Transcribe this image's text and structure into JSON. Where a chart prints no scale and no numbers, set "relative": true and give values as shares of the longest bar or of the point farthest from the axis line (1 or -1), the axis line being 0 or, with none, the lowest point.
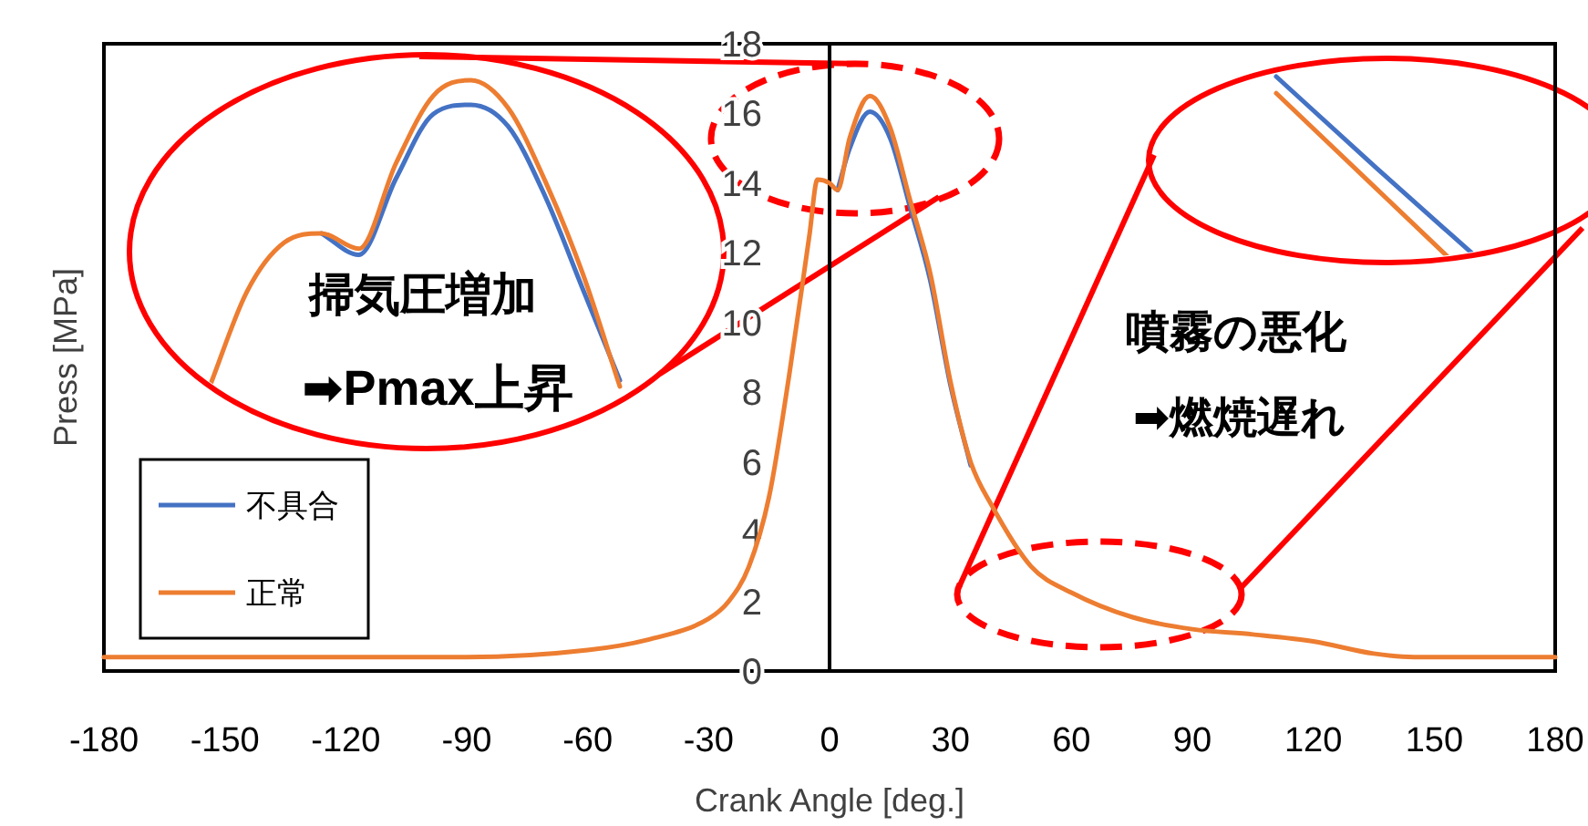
{
  "chart_data": [
    {
      "type": "line",
      "xlabel": "Crank Angle [deg.]",
      "ylabel": "Press [MPa]",
      "x": [
        -180,
        -150,
        -120,
        -90,
        -60,
        -45,
        -30,
        -25,
        -20,
        -15,
        -10,
        -5,
        -3,
        0,
        2,
        5,
        10,
        15,
        20,
        25,
        30,
        35,
        40,
        50,
        60,
        75,
        90,
        105,
        120,
        135,
        145,
        180
      ],
      "series": [
        {
          "name": "不具合",
          "color": "#4472c4",
          "values": [
            null,
            null,
            null,
            null,
            null,
            null,
            null,
            null,
            null,
            null,
            null,
            null,
            null,
            null,
            13.8,
            15.0,
            16.05,
            15.3,
            13.3,
            11.2,
            8.2,
            5.9,
            null,
            null,
            null,
            null,
            null,
            null,
            null,
            null,
            null,
            null
          ]
        },
        {
          "name": "正常",
          "color": "#ed7d31",
          "values": [
            0.4,
            0.4,
            0.4,
            0.4,
            0.6,
            0.9,
            1.5,
            2.0,
            3.0,
            5.0,
            8.5,
            12.5,
            14.1,
            14.0,
            13.8,
            15.3,
            16.5,
            15.6,
            13.5,
            11.4,
            8.3,
            6.0,
            4.8,
            3.0,
            2.25,
            1.55,
            1.2,
            1.05,
            0.85,
            0.5,
            0.4,
            0.4
          ]
        }
      ],
      "xlim": [
        -180,
        180
      ],
      "ylim": [
        0,
        18
      ],
      "xticks": [
        -180,
        -150,
        -120,
        -90,
        -60,
        -30,
        0,
        30,
        60,
        90,
        120,
        150,
        180
      ],
      "yticks": [
        0,
        2,
        4,
        6,
        8,
        10,
        12,
        14,
        16,
        18
      ],
      "legend": "bottom left",
      "annotations": [
        "掃気圧増加",
        "➡Pmax上昇",
        "噴霧の悪化",
        "➡燃焼遅れ"
      ]
    },
    {
      "type": "line",
      "relative": true,
      "categories": [
        null,
        null,
        null,
        null,
        null,
        null,
        null,
        null,
        null,
        null,
        null,
        null
      ],
      "series": [
        {
          "color": "#4472c4",
          "values": [
            null,
            null,
            null,
            0.5,
            0.43,
            0.68,
            0.89,
            0.92,
            0.85,
            0.62,
            0.32,
            0.02
          ]
        },
        {
          "color": "#ed7d31",
          "values": [
            0,
            0.31,
            0.47,
            0.5,
            0.45,
            0.73,
            0.95,
            1.0,
            0.91,
            0.67,
            0.37,
            0
          ]
        }
      ]
    },
    {
      "type": "line",
      "relative": true,
      "categories": [
        null,
        null,
        null
      ],
      "series": [
        {
          "color": "#4472c4",
          "values": [
            1.0,
            0.56,
            0.13
          ]
        },
        {
          "color": "#ed7d31",
          "values": [
            0.92,
            0.46,
            0
          ]
        }
      ]
    }
  ]
}
